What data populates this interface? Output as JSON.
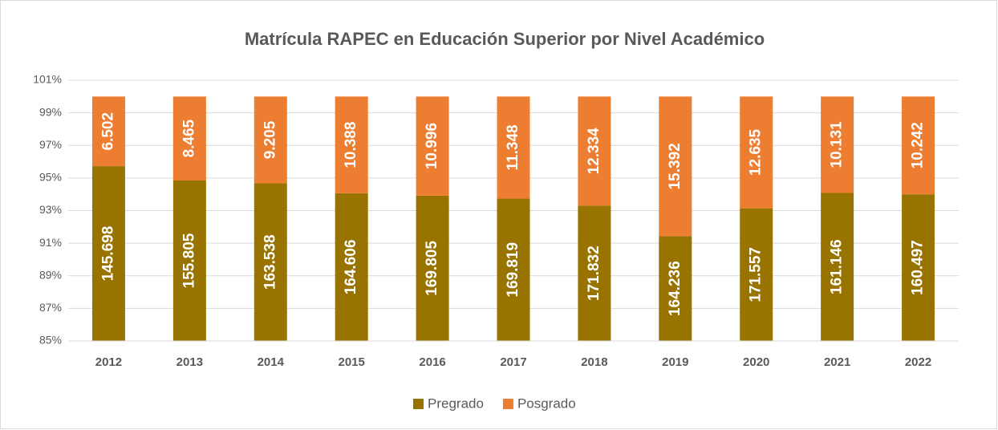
{
  "chart_data": {
    "type": "stacked_percent_bar",
    "title": "Matrícula RAPEC en Educación Superior por Nivel Académico",
    "categories": [
      "2012",
      "2013",
      "2014",
      "2015",
      "2016",
      "2017",
      "2018",
      "2019",
      "2020",
      "2021",
      "2022"
    ],
    "series": [
      {
        "name": "Pregrado",
        "color": "#997300",
        "values": [
          145698,
          155805,
          163538,
          164606,
          169805,
          169819,
          171832,
          164236,
          171557,
          161146,
          160497
        ],
        "value_labels": [
          "145.698",
          "155.805",
          "163.538",
          "164.606",
          "169.805",
          "169.819",
          "171.832",
          "164.236",
          "171.557",
          "161.146",
          "160.497"
        ]
      },
      {
        "name": "Posgrado",
        "color": "#ed7d31",
        "values": [
          6502,
          8465,
          9205,
          10388,
          10996,
          11348,
          12334,
          15392,
          12635,
          10131,
          10242
        ],
        "value_labels": [
          "6.502",
          "8.465",
          "9.205",
          "10.388",
          "10.996",
          "11.348",
          "12.334",
          "15.392",
          "12.635",
          "10.131",
          "10.242"
        ]
      }
    ],
    "ylim": [
      85,
      101
    ],
    "yticks": [
      {
        "value": 85,
        "label": "85%"
      },
      {
        "value": 87,
        "label": "87%"
      },
      {
        "value": 89,
        "label": "89%"
      },
      {
        "value": 91,
        "label": "91%"
      },
      {
        "value": 93,
        "label": "93%"
      },
      {
        "value": 95,
        "label": "95%"
      },
      {
        "value": 97,
        "label": "97%"
      },
      {
        "value": 99,
        "label": "99%"
      },
      {
        "value": 101,
        "label": "101%"
      }
    ],
    "grid": true,
    "legend": "bottom"
  }
}
